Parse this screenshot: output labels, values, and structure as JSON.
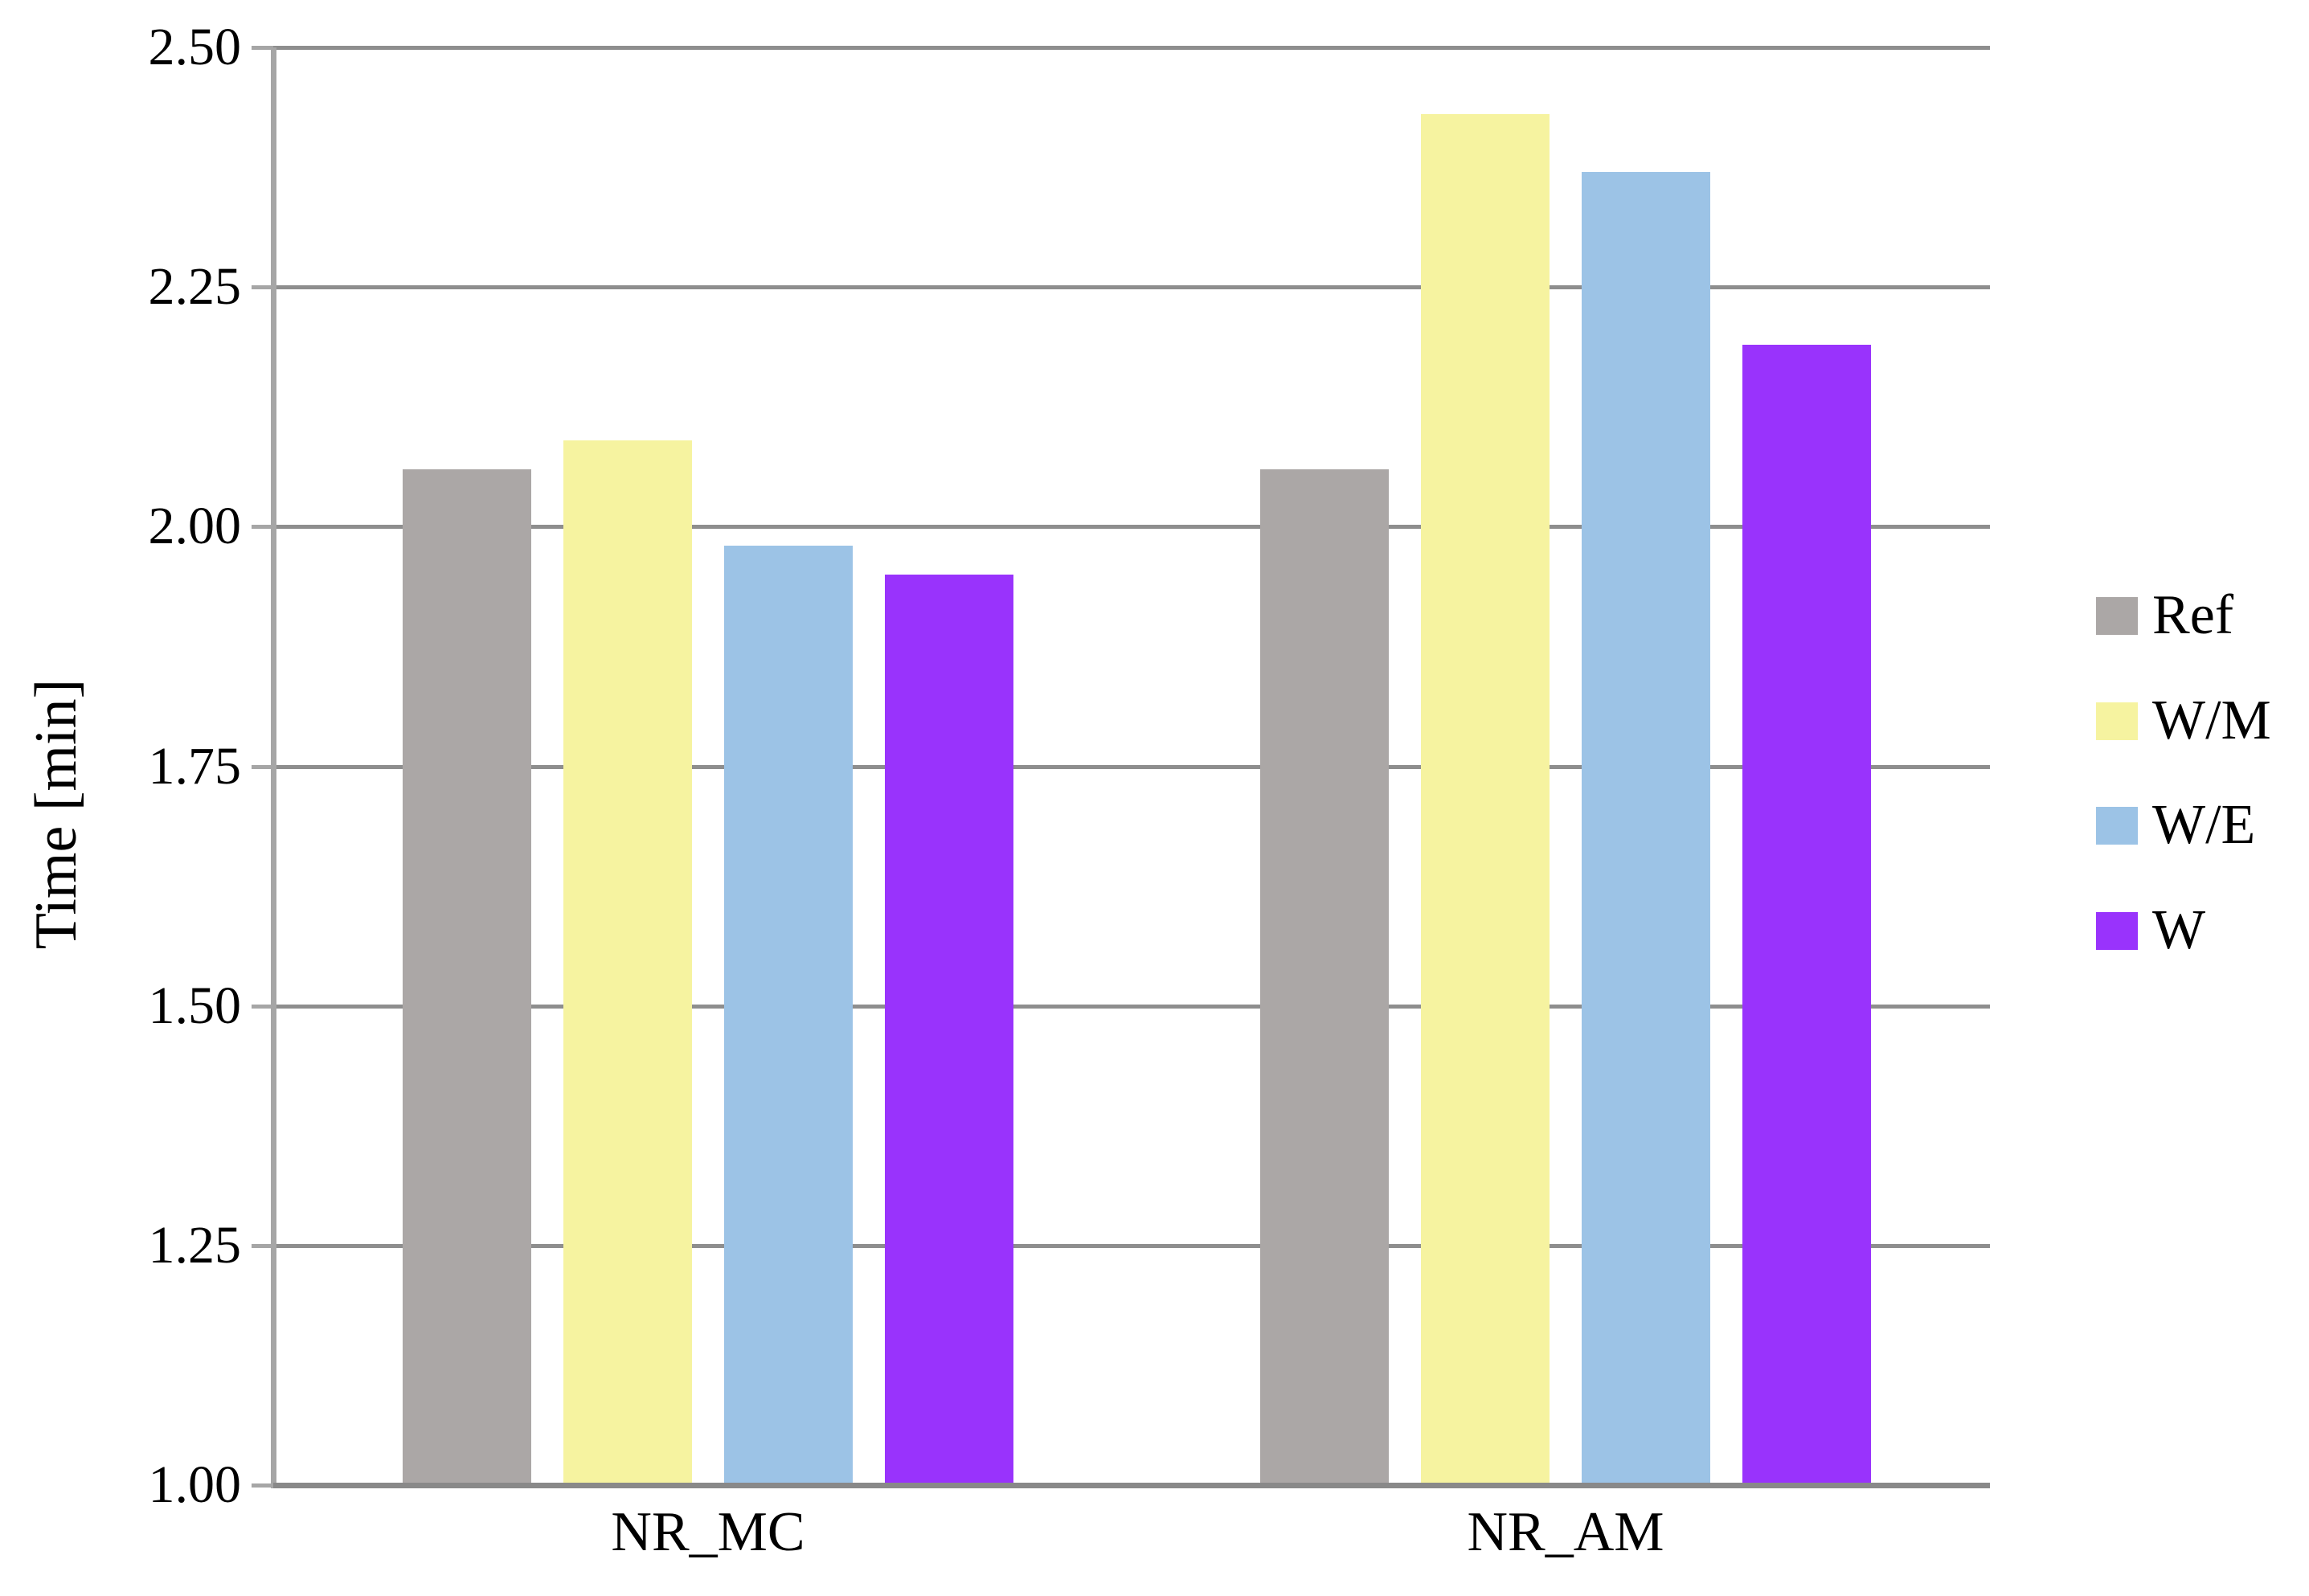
{
  "chart_data": {
    "type": "bar",
    "ylabel": "Time [min]",
    "categories": [
      "NR_MC",
      "NR_AM"
    ],
    "series": [
      {
        "name": "Ref",
        "color": "#aba7a6",
        "values": [
          2.06,
          2.06
        ]
      },
      {
        "name": "W/M",
        "color": "#f6f3a0",
        "values": [
          2.09,
          2.43
        ]
      },
      {
        "name": "W/E",
        "color": "#9cc3e6",
        "values": [
          1.98,
          2.37
        ]
      },
      {
        "name": "W",
        "color": "#9933fc",
        "values": [
          1.95,
          2.19
        ]
      }
    ],
    "ylim": [
      1.0,
      2.5
    ],
    "ytick_step": 0.25,
    "yticks": [
      "2.50",
      "2.25",
      "2.00",
      "1.75",
      "1.50",
      "1.25",
      "1.00"
    ],
    "grid": "horizontal",
    "legend_position": "right"
  },
  "colors": {
    "background": "#ffffff",
    "gridline": "#8e8e8e",
    "y_axis_line": "#a6a6a6",
    "bottom_axis": "#898989",
    "text": "#000000"
  }
}
